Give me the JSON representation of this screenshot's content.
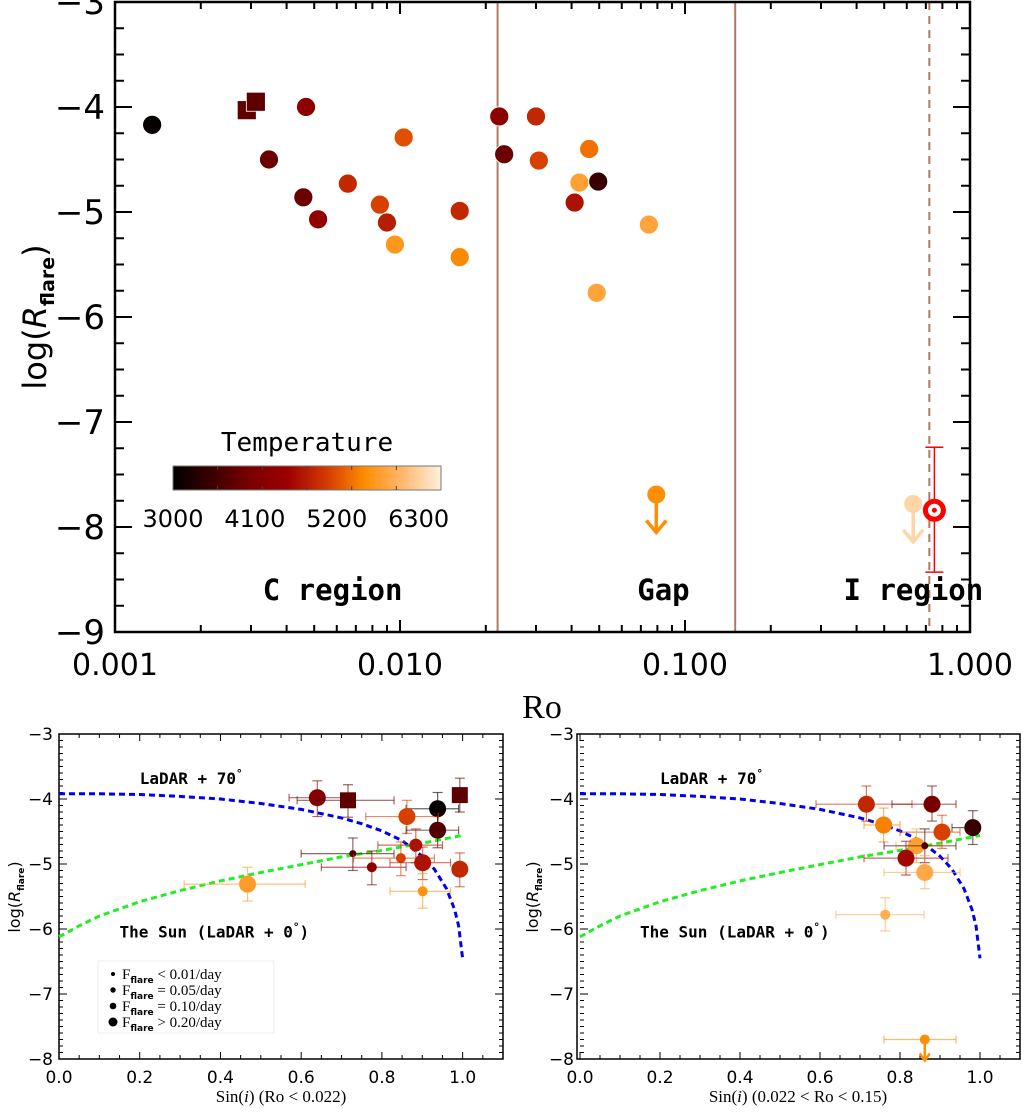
{
  "chart_data": [
    {
      "id": "top",
      "type": "scatter",
      "title": "",
      "xlabel": "Ro",
      "ylabel": "log(R_flare)",
      "ylabel_main": "log(",
      "ylabel_R": "R",
      "ylabel_sub": "flare",
      "ylabel_close": ")",
      "xscale": "log",
      "xlim": [
        0.001,
        1.0
      ],
      "ylim": [
        -9,
        -3
      ],
      "xticks": [
        0.001,
        0.01,
        0.1,
        1.0
      ],
      "xtick_labels": [
        "0.001",
        "0.010",
        "0.100",
        "1.000"
      ],
      "yticks": [
        -3,
        -4,
        -5,
        -6,
        -7,
        -8,
        -9
      ],
      "ytick_labels": [
        "−3",
        "−4",
        "−5",
        "−6",
        "−7",
        "−8",
        "−9"
      ],
      "vlines": [
        {
          "x": 0.022,
          "style": "solid",
          "color": "#b07a5e"
        },
        {
          "x": 0.15,
          "style": "solid",
          "color": "#b07a5e"
        },
        {
          "x": 0.72,
          "style": "dashed",
          "color": "#b07a5e"
        }
      ],
      "region_labels": [
        {
          "text": "C region",
          "x": 0.0033,
          "y": -8.6
        },
        {
          "text": "Gap",
          "x": 0.068,
          "y": -8.6
        },
        {
          "text": "I region",
          "x": 0.36,
          "y": -8.6
        }
      ],
      "colorbar": {
        "title": "Temperature",
        "min": 3000,
        "max": 6600,
        "tick_labels": [
          "3000",
          "4100",
          "5200",
          "6300"
        ],
        "colors": [
          "#000000",
          "#3a0000",
          "#7a0000",
          "#9c0000",
          "#d23a00",
          "#ff8c00",
          "#ffb870",
          "#fff0dc"
        ]
      },
      "points": [
        {
          "ro": 0.00135,
          "y": -4.17,
          "temp": 3050,
          "marker": "circle"
        },
        {
          "ro": 0.0029,
          "y": -4.03,
          "temp": 3800,
          "marker": "square"
        },
        {
          "ro": 0.00312,
          "y": -3.95,
          "temp": 3800,
          "marker": "square"
        },
        {
          "ro": 0.00468,
          "y": -4.0,
          "temp": 4300,
          "marker": "circle"
        },
        {
          "ro": 0.00347,
          "y": -4.5,
          "temp": 3900,
          "marker": "circle"
        },
        {
          "ro": 0.00458,
          "y": -4.86,
          "temp": 3900,
          "marker": "circle"
        },
        {
          "ro": 0.00516,
          "y": -5.07,
          "temp": 4400,
          "marker": "circle"
        },
        {
          "ro": 0.00656,
          "y": -4.73,
          "temp": 4900,
          "marker": "circle"
        },
        {
          "ro": 0.0085,
          "y": -4.93,
          "temp": 5100,
          "marker": "circle"
        },
        {
          "ro": 0.009,
          "y": -5.1,
          "temp": 4800,
          "marker": "circle"
        },
        {
          "ro": 0.0096,
          "y": -5.31,
          "temp": 5700,
          "marker": "circle"
        },
        {
          "ro": 0.0103,
          "y": -4.29,
          "temp": 5200,
          "marker": "circle"
        },
        {
          "ro": 0.0162,
          "y": -4.99,
          "temp": 4900,
          "marker": "circle"
        },
        {
          "ro": 0.0162,
          "y": -5.43,
          "temp": 5550,
          "marker": "circle"
        },
        {
          "ro": 0.0223,
          "y": -4.09,
          "temp": 4300,
          "marker": "circle"
        },
        {
          "ro": 0.0232,
          "y": -4.45,
          "temp": 3900,
          "marker": "circle"
        },
        {
          "ro": 0.03,
          "y": -4.09,
          "temp": 4900,
          "marker": "circle"
        },
        {
          "ro": 0.0307,
          "y": -4.51,
          "temp": 5100,
          "marker": "circle"
        },
        {
          "ro": 0.0461,
          "y": -4.4,
          "temp": 5400,
          "marker": "circle"
        },
        {
          "ro": 0.0426,
          "y": -4.72,
          "temp": 5800,
          "marker": "circle"
        },
        {
          "ro": 0.0496,
          "y": -4.71,
          "temp": 3500,
          "marker": "circle"
        },
        {
          "ro": 0.041,
          "y": -4.91,
          "temp": 4700,
          "marker": "circle"
        },
        {
          "ro": 0.0747,
          "y": -5.12,
          "temp": 5850,
          "marker": "circle"
        },
        {
          "ro": 0.049,
          "y": -5.77,
          "temp": 5850,
          "marker": "circle"
        }
      ],
      "upper_limits": [
        {
          "ro": 0.0793,
          "y": -7.69,
          "temp": 5600
        },
        {
          "ro": 0.632,
          "y": -7.78,
          "temp": 6350
        }
      ],
      "sun": {
        "ro": 0.75,
        "y": -7.84,
        "yerr_low": -8.43,
        "yerr_high": -7.24,
        "color": "#ff0000"
      }
    },
    {
      "id": "bottom-left",
      "type": "scatter",
      "xlabel": "Sin(i) (Ro < 0.022)",
      "xlabel_pre": "Sin(",
      "xlabel_i": "i",
      "xlabel_post": ") (Ro < 0.022)",
      "ylabel_main": "log(",
      "ylabel_R": "R",
      "ylabel_sub": "flare",
      "ylabel_close": ")",
      "xlim": [
        0.0,
        1.1
      ],
      "ylim": [
        -8,
        -3
      ],
      "xticks": [
        0.0,
        0.2,
        0.4,
        0.6,
        0.8,
        1.0
      ],
      "xtick_labels": [
        "0.0",
        "0.2",
        "0.4",
        "0.6",
        "0.8",
        "1.0"
      ],
      "yticks": [
        -3,
        -4,
        -5,
        -6,
        -7,
        -8
      ],
      "ytick_labels": [
        "−3",
        "−4",
        "−5",
        "−6",
        "−7",
        "−8"
      ],
      "curve_labels": [
        {
          "text": "LaDAR + 70",
          "deg": "°",
          "x": 0.2,
          "y": -3.77
        },
        {
          "text": "The Sun (LaDAR + 0",
          "deg": "°",
          "close": ")",
          "x": 0.15,
          "y": -6.13
        }
      ],
      "curves": [
        {
          "name": "LaDAR + 70°",
          "color": "#0000ee",
          "x": [
            0.0,
            0.1,
            0.2,
            0.3,
            0.4,
            0.5,
            0.6,
            0.7,
            0.75,
            0.8,
            0.85,
            0.9,
            0.93,
            0.96,
            0.98,
            0.99,
            1.0
          ],
          "y": [
            -3.92,
            -3.92,
            -3.93,
            -3.96,
            -4.0,
            -4.07,
            -4.16,
            -4.29,
            -4.38,
            -4.49,
            -4.64,
            -4.88,
            -5.08,
            -5.38,
            -5.7,
            -5.95,
            -6.45
          ]
        },
        {
          "name": "The Sun (LaDAR + 0°)",
          "color": "#22ee22",
          "x": [
            0.0,
            0.05,
            0.1,
            0.2,
            0.3,
            0.4,
            0.5,
            0.6,
            0.7,
            0.8,
            0.9,
            1.0
          ],
          "y": [
            -6.12,
            -5.95,
            -5.8,
            -5.58,
            -5.41,
            -5.26,
            -5.13,
            -5.01,
            -4.89,
            -4.79,
            -4.68,
            -4.56
          ]
        }
      ],
      "legend": {
        "position": "lower-left",
        "entries": [
          {
            "label_main": "F",
            "label_sub": "flare",
            "label_rest": " < 0.01/day",
            "size": "xs"
          },
          {
            "label_main": "F",
            "label_sub": "flare",
            "label_rest": " = 0.05/day",
            "size": "s"
          },
          {
            "label_main": "F",
            "label_sub": "flare",
            "label_rest": " = 0.10/day",
            "size": "m"
          },
          {
            "label_main": "F",
            "label_sub": "flare",
            "label_rest": " > 0.20/day",
            "size": "l"
          }
        ]
      },
      "points": [
        {
          "x": 0.64,
          "y": -3.98,
          "xerr": [
            0.57,
            0.73
          ],
          "yerr": [
            -4.27,
            -3.72
          ],
          "temp": 4200,
          "size": "l",
          "marker": "circle"
        },
        {
          "x": 0.716,
          "y": -4.02,
          "xerr": [
            0.59,
            0.83
          ],
          "yerr": [
            -4.28,
            -3.78
          ],
          "temp": 3800,
          "size": "l",
          "marker": "square"
        },
        {
          "x": 0.938,
          "y": -4.15,
          "xerr": [
            0.86,
            0.99
          ],
          "yerr": [
            -4.4,
            -3.9
          ],
          "temp": 3050,
          "size": "l",
          "marker": "circle"
        },
        {
          "x": 0.993,
          "y": -3.94,
          "xerr": [
            0.99,
            1.0
          ],
          "yerr": [
            -4.2,
            -3.68
          ],
          "temp": 3800,
          "size": "l",
          "marker": "square"
        },
        {
          "x": 0.862,
          "y": -4.27,
          "xerr": [
            0.76,
            0.94
          ],
          "yerr": [
            -4.53,
            -4.02
          ],
          "temp": 5100,
          "size": "l",
          "marker": "circle"
        },
        {
          "x": 0.938,
          "y": -4.48,
          "xerr": [
            0.86,
            0.99
          ],
          "yerr": [
            -4.75,
            -4.22
          ],
          "temp": 3700,
          "size": "l",
          "marker": "circle"
        },
        {
          "x": 0.884,
          "y": -4.71,
          "xerr": [
            0.79,
            0.95
          ],
          "yerr": [
            -4.98,
            -4.46
          ],
          "temp": 4700,
          "size": "m",
          "marker": "circle"
        },
        {
          "x": 0.728,
          "y": -4.84,
          "xerr": [
            0.6,
            0.83
          ],
          "yerr": [
            -5.1,
            -4.6
          ],
          "temp": 3700,
          "size": "xs",
          "marker": "circle"
        },
        {
          "x": 0.775,
          "y": -5.05,
          "xerr": [
            0.65,
            0.86
          ],
          "yerr": [
            -5.32,
            -4.8
          ],
          "temp": 4300,
          "size": "s",
          "marker": "circle"
        },
        {
          "x": 0.847,
          "y": -4.91,
          "xerr": [
            0.73,
            0.93
          ],
          "yerr": [
            -5.18,
            -4.66
          ],
          "temp": 5100,
          "size": "s",
          "marker": "circle"
        },
        {
          "x": 0.901,
          "y": -4.98,
          "xerr": [
            0.82,
            0.97
          ],
          "yerr": [
            -5.24,
            -4.74
          ],
          "temp": 4700,
          "size": "l",
          "marker": "circle"
        },
        {
          "x": 0.993,
          "y": -5.08,
          "xerr": [
            0.99,
            1.0
          ],
          "yerr": [
            -5.35,
            -4.83
          ],
          "temp": 4900,
          "size": "l",
          "marker": "circle"
        },
        {
          "x": 0.901,
          "y": -5.42,
          "xerr": [
            0.82,
            0.97
          ],
          "yerr": [
            -5.68,
            -5.15
          ],
          "temp": 5650,
          "size": "s",
          "marker": "circle"
        },
        {
          "x": 0.467,
          "y": -5.31,
          "xerr": [
            0.31,
            0.61
          ],
          "yerr": [
            -5.57,
            -5.05
          ],
          "temp": 5750,
          "size": "l",
          "marker": "circle"
        }
      ]
    },
    {
      "id": "bottom-right",
      "type": "scatter",
      "xlabel": "Sin(i) (0.022 < Ro < 0.15)",
      "xlabel_pre": "Sin(",
      "xlabel_i": "i",
      "xlabel_post": ") (0.022 < Ro < 0.15)",
      "ylabel_main": "log(",
      "ylabel_R": "R",
      "ylabel_sub": "flare",
      "ylabel_close": ")",
      "xlim": [
        0.0,
        1.1
      ],
      "ylim": [
        -8,
        -3
      ],
      "xticks": [
        0.0,
        0.2,
        0.4,
        0.6,
        0.8,
        1.0
      ],
      "xtick_labels": [
        "0.0",
        "0.2",
        "0.4",
        "0.6",
        "0.8",
        "1.0"
      ],
      "yticks": [
        -3,
        -4,
        -5,
        -6,
        -7,
        -8
      ],
      "ytick_labels": [
        "−3",
        "−4",
        "−5",
        "−6",
        "−7",
        "−8"
      ],
      "curve_labels": [
        {
          "text": "LaDAR + 70",
          "deg": "°",
          "x": 0.2,
          "y": -3.77
        },
        {
          "text": "The Sun (LaDAR + 0",
          "deg": "°",
          "close": ")",
          "x": 0.15,
          "y": -6.13
        }
      ],
      "curves": [
        {
          "name": "LaDAR + 70°",
          "color": "#0000ee",
          "x": [
            0.0,
            0.1,
            0.2,
            0.3,
            0.4,
            0.5,
            0.6,
            0.7,
            0.75,
            0.8,
            0.85,
            0.9,
            0.93,
            0.96,
            0.98,
            0.99,
            1.0
          ],
          "y": [
            -3.92,
            -3.92,
            -3.93,
            -3.96,
            -4.0,
            -4.07,
            -4.16,
            -4.29,
            -4.38,
            -4.49,
            -4.64,
            -4.88,
            -5.08,
            -5.38,
            -5.7,
            -5.95,
            -6.45
          ]
        },
        {
          "name": "The Sun (LaDAR + 0°)",
          "color": "#22ee22",
          "x": [
            0.0,
            0.05,
            0.1,
            0.2,
            0.3,
            0.4,
            0.5,
            0.6,
            0.7,
            0.8,
            0.9,
            1.0
          ],
          "y": [
            -6.12,
            -5.95,
            -5.8,
            -5.58,
            -5.41,
            -5.26,
            -5.13,
            -5.01,
            -4.89,
            -4.79,
            -4.68,
            -4.56
          ]
        }
      ],
      "points": [
        {
          "x": 0.716,
          "y": -4.08,
          "xerr": [
            0.59,
            0.83
          ],
          "yerr": [
            -4.34,
            -3.8
          ],
          "temp": 4900,
          "size": "l",
          "marker": "circle"
        },
        {
          "x": 0.88,
          "y": -4.08,
          "xerr": [
            0.78,
            0.94
          ],
          "yerr": [
            -4.34,
            -3.8
          ],
          "temp": 4000,
          "size": "l",
          "marker": "circle"
        },
        {
          "x": 0.759,
          "y": -4.4,
          "xerr": [
            0.71,
            0.8
          ],
          "yerr": [
            -4.66,
            -4.14
          ],
          "temp": 5500,
          "size": "l",
          "marker": "circle"
        },
        {
          "x": 0.905,
          "y": -4.51,
          "xerr": [
            0.8,
            0.95
          ],
          "yerr": [
            -4.76,
            -4.25
          ],
          "temp": 5100,
          "size": "l",
          "marker": "circle"
        },
        {
          "x": 0.982,
          "y": -4.44,
          "xerr": [
            0.93,
            1.0
          ],
          "yerr": [
            -4.7,
            -4.18
          ],
          "temp": 3500,
          "size": "l",
          "marker": "circle"
        },
        {
          "x": 0.841,
          "y": -4.72,
          "xerr": [
            0.79,
            0.9
          ],
          "yerr": [
            -4.98,
            -4.46
          ],
          "temp": 5800,
          "size": "l",
          "marker": "circle"
        },
        {
          "x": 0.862,
          "y": -4.72,
          "xerr": [
            0.76,
            0.94
          ],
          "yerr": [
            -4.98,
            -4.46
          ],
          "temp": 3700,
          "size": "xs",
          "marker": "circle"
        },
        {
          "x": 0.815,
          "y": -4.91,
          "xerr": [
            0.71,
            0.92
          ],
          "yerr": [
            -5.17,
            -4.65
          ],
          "temp": 4600,
          "size": "l",
          "marker": "circle"
        },
        {
          "x": 0.862,
          "y": -5.13,
          "xerr": [
            0.76,
            0.95
          ],
          "yerr": [
            -5.38,
            -4.87
          ],
          "temp": 5900,
          "size": "l",
          "marker": "circle"
        },
        {
          "x": 0.763,
          "y": -5.78,
          "xerr": [
            0.64,
            0.86
          ],
          "yerr": [
            -6.03,
            -5.52
          ],
          "temp": 5950,
          "size": "s",
          "marker": "circle"
        }
      ],
      "upper_limits": [
        {
          "x": 0.862,
          "y": -7.7,
          "xerr": [
            0.76,
            0.94
          ],
          "temp": 5600,
          "size": "s"
        }
      ]
    }
  ]
}
